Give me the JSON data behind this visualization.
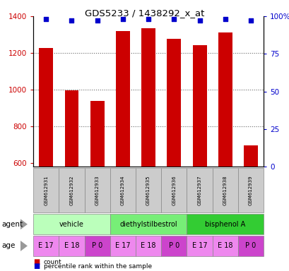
{
  "title": "GDS5233 / 1438292_x_at",
  "samples": [
    "GSM612931",
    "GSM612932",
    "GSM612933",
    "GSM612934",
    "GSM612935",
    "GSM612936",
    "GSM612937",
    "GSM612938",
    "GSM612939"
  ],
  "counts": [
    1228,
    998,
    938,
    1320,
    1335,
    1278,
    1242,
    1310,
    695
  ],
  "percentiles": [
    98,
    97,
    97,
    98,
    98,
    98,
    97,
    98,
    97
  ],
  "bar_color": "#cc0000",
  "dot_color": "#0000cc",
  "ylim_left": [
    580,
    1400
  ],
  "yticks_left": [
    600,
    800,
    1000,
    1200,
    1400
  ],
  "ylim_right": [
    0,
    100
  ],
  "yticks_right": [
    0,
    25,
    50,
    75,
    100
  ],
  "yticklabels_right": [
    "0",
    "25",
    "50",
    "75",
    "100%"
  ],
  "agent_groups": [
    {
      "label": "vehicle",
      "span": [
        0,
        3
      ],
      "color": "#bbffbb"
    },
    {
      "label": "diethylstilbestrol",
      "span": [
        3,
        6
      ],
      "color": "#77ee77"
    },
    {
      "label": "bisphenol A",
      "span": [
        6,
        9
      ],
      "color": "#33cc33"
    }
  ],
  "age_colors": [
    "#ee88ee",
    "#ee88ee",
    "#cc44cc",
    "#ee88ee",
    "#ee88ee",
    "#cc44cc",
    "#ee88ee",
    "#ee88ee",
    "#cc44cc"
  ],
  "age_labels": [
    "E 17",
    "E 18",
    "P 0",
    "E 17",
    "E 18",
    "P 0",
    "E 17",
    "E 18",
    "P 0"
  ],
  "legend_count_color": "#cc0000",
  "legend_dot_color": "#0000cc",
  "agent_label": "agent",
  "age_label": "age",
  "grid_color": "#666666",
  "background_color": "#ffffff",
  "bar_width": 0.55,
  "sample_row_bg": "#cccccc",
  "arrow_color": "#999999"
}
